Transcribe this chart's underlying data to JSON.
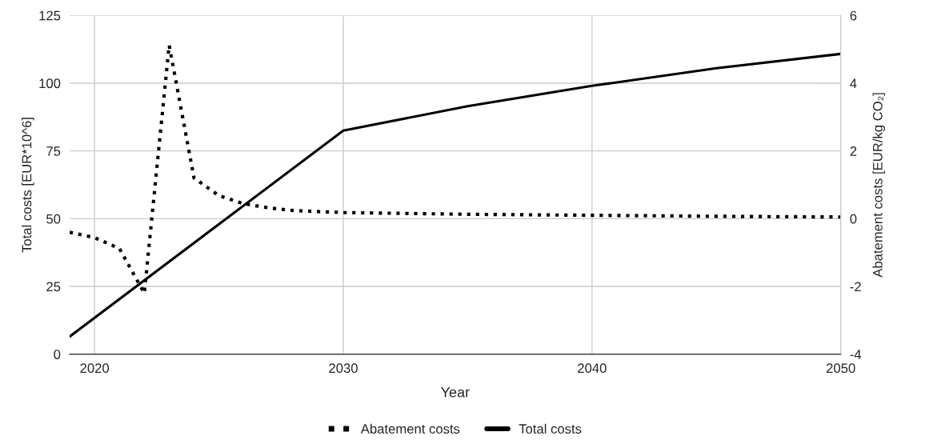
{
  "chart_data": {
    "type": "line",
    "xlabel": "Year",
    "ylabel": "Total costs [EUR*10^6]",
    "y2label": "Abatement costs [EUR/kg CO₂]",
    "xlim": [
      2019,
      2050
    ],
    "xticks": [
      2020,
      2030,
      2040,
      2050
    ],
    "ylim": [
      0,
      125
    ],
    "yticks": [
      0,
      25,
      50,
      75,
      100,
      125
    ],
    "y2lim": [
      -4,
      6
    ],
    "y2ticks": [
      -4,
      -2,
      0,
      2,
      4,
      6
    ],
    "grid": true,
    "legend": "bottom",
    "series": [
      {
        "name": "Abatement costs",
        "color": "#000000",
        "axis": "y2",
        "line_style": "dotted",
        "x": [
          2019,
          2020,
          2021,
          2022,
          2023,
          2024,
          2025,
          2026,
          2027,
          2028,
          2030,
          2035,
          2040,
          2045,
          2050
        ],
        "values": [
          -0.4,
          -0.56,
          -0.88,
          -2.2,
          5.12,
          1.2,
          0.68,
          0.44,
          0.32,
          0.24,
          0.18,
          0.13,
          0.1,
          0.07,
          0.05
        ]
      },
      {
        "name": "Total costs",
        "color": "#000000",
        "line_style": "solid",
        "x": [
          2019,
          2030,
          2035,
          2040,
          2045,
          2050
        ],
        "values": [
          6.5,
          82.5,
          91.5,
          99,
          105.5,
          110.8
        ]
      }
    ]
  }
}
